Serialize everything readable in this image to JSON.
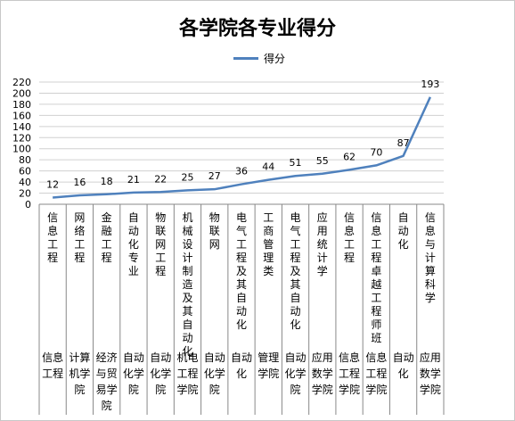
{
  "chart_data": {
    "type": "line",
    "title": "各学院各专业得分",
    "legend": "得分",
    "legend_position": "top",
    "color": "#4f81bd",
    "ylim": [
      0,
      220
    ],
    "yticks": [
      0,
      20,
      40,
      60,
      80,
      100,
      120,
      140,
      160,
      180,
      200,
      220
    ],
    "grid": true,
    "categories": [
      {
        "major": "信息工程",
        "college": "信息工程"
      },
      {
        "major": "网络工程",
        "college": "计算机学院"
      },
      {
        "major": "金融工程",
        "college": "经济与贸易学院"
      },
      {
        "major": "自动化专业",
        "college": "自动化学院"
      },
      {
        "major": "物联网工程",
        "college": "自动化学院"
      },
      {
        "major": "机械设计制造及其自动化",
        "college": "机电工程学院"
      },
      {
        "major": "物联网",
        "college": "自动化学院"
      },
      {
        "major": "电气工程及其自动化",
        "college": "自动化"
      },
      {
        "major": "工商管理类",
        "college": "管理学院"
      },
      {
        "major": "电气工程及其自动化",
        "college": "自动化学院"
      },
      {
        "major": "应用统计学",
        "college": "应用数学学院"
      },
      {
        "major": "信息工程",
        "college": "信息工程学院"
      },
      {
        "major": "信息工程卓越工程师班",
        "college": "信息工程学院"
      },
      {
        "major": "自动化",
        "college": "自动化"
      },
      {
        "major": "信息与计算科学",
        "college": "应用数学学院"
      }
    ],
    "values": [
      12,
      16,
      18,
      21,
      22,
      25,
      27,
      36,
      44,
      51,
      55,
      62,
      70,
      87,
      193
    ]
  }
}
